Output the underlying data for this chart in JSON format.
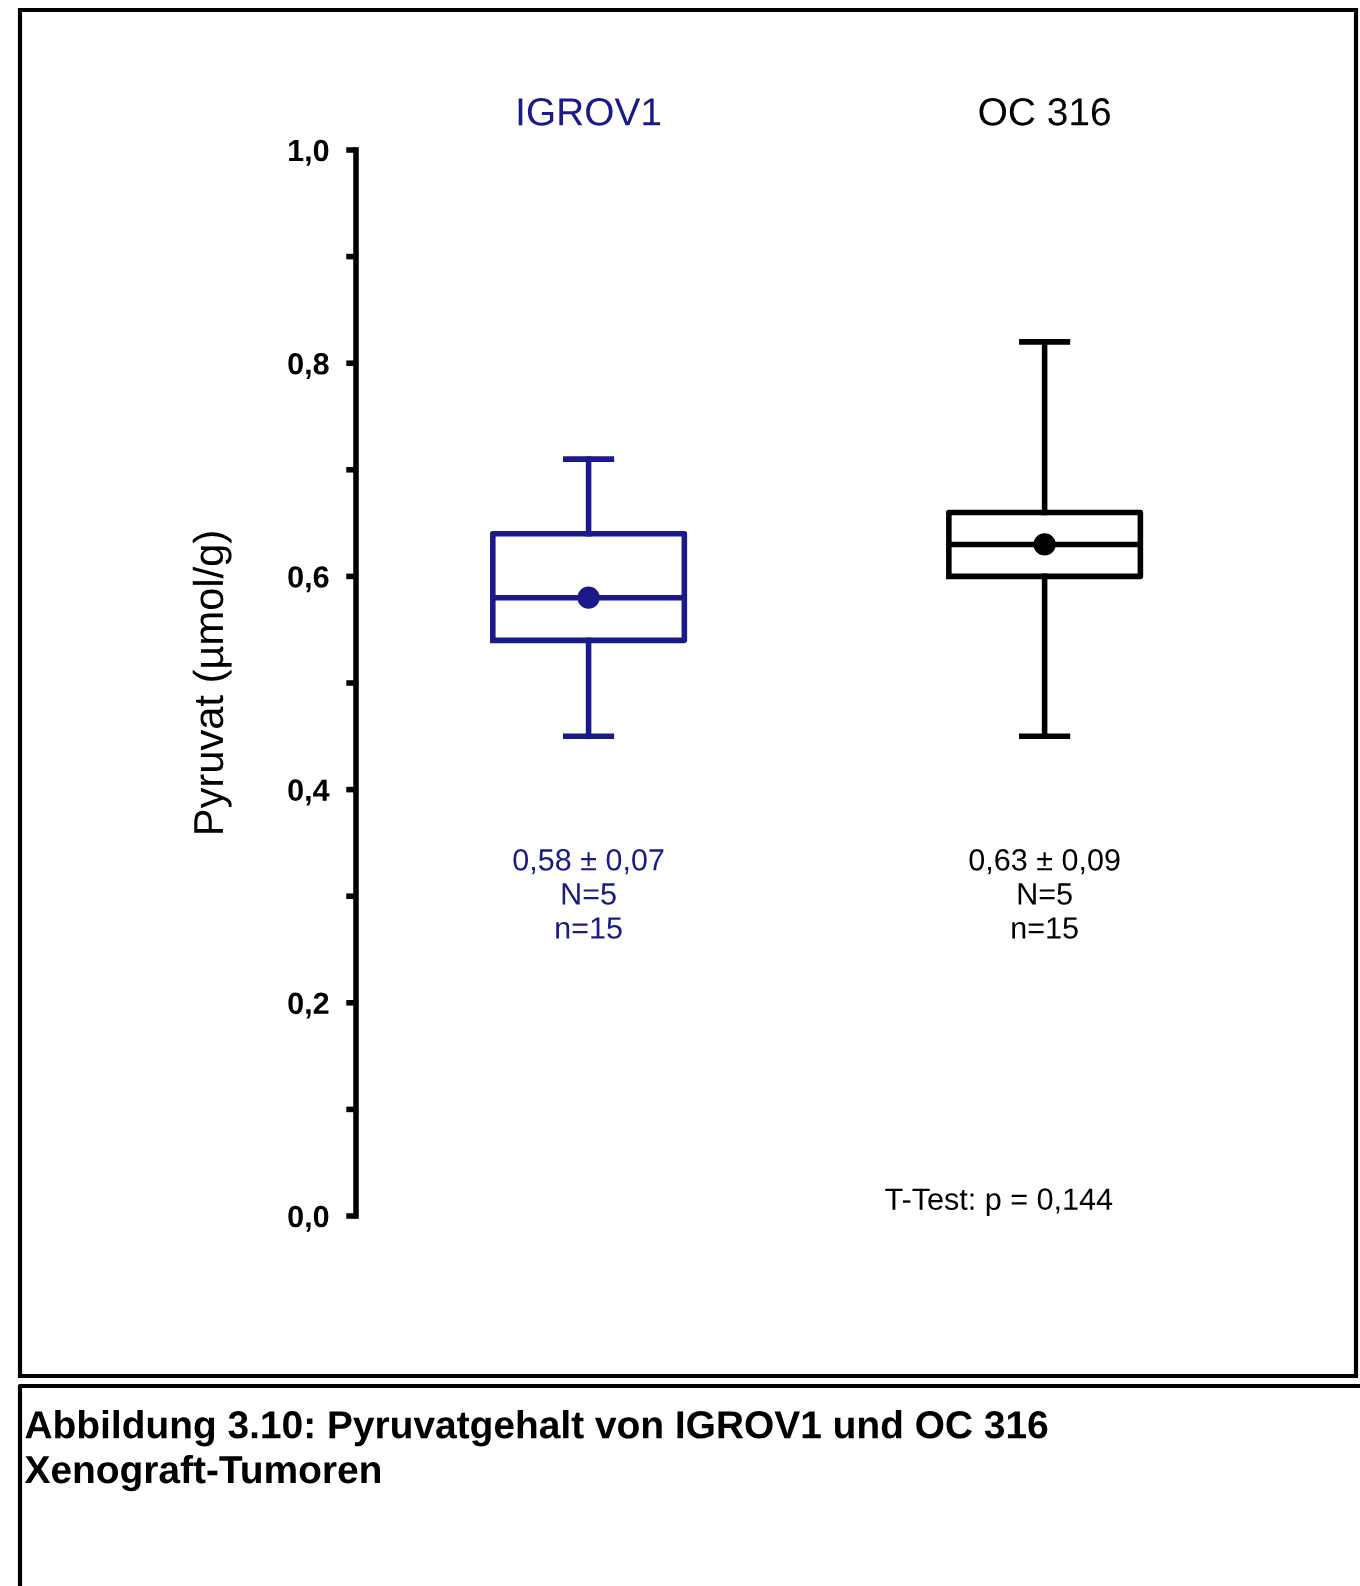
{
  "chart_data": {
    "type": "box",
    "ylabel": "Pyruvat (µmol/g)",
    "categories": [
      "IGROV1",
      "OC 316"
    ],
    "colors": [
      "#1a1a8a",
      "#000000"
    ],
    "boxes": [
      {
        "low": 0.45,
        "q1": 0.54,
        "median": 0.58,
        "q3": 0.64,
        "high": 0.71,
        "mean": 0.58
      },
      {
        "low": 0.45,
        "q1": 0.6,
        "median": 0.63,
        "q3": 0.66,
        "high": 0.82,
        "mean": 0.63
      }
    ],
    "ylim": [
      0,
      1
    ],
    "yticks": [
      {
        "value": 0,
        "label": "0,0"
      },
      {
        "value": 0.1,
        "label": null
      },
      {
        "value": 0.2,
        "label": "0,2"
      },
      {
        "value": 0.3,
        "label": null
      },
      {
        "value": 0.4,
        "label": "0,4"
      },
      {
        "value": 0.5,
        "label": null
      },
      {
        "value": 0.6,
        "label": "0,6"
      },
      {
        "value": 0.7,
        "label": null
      },
      {
        "value": 0.8,
        "label": "0,8"
      },
      {
        "value": 0.9,
        "label": null
      },
      {
        "value": 1,
        "label": "1,0"
      }
    ],
    "grid": false,
    "annotations": [
      "0,58 ± 0,07\nN=5\nn=15",
      "0,63 ± 0,09\nN=5\nn=15",
      "T-Test: p = 0,144",
      "Abbildung 3.10: Pyruvatgehalt von IGROV1 und OC 316 Xenograft-Tumoren"
    ]
  }
}
